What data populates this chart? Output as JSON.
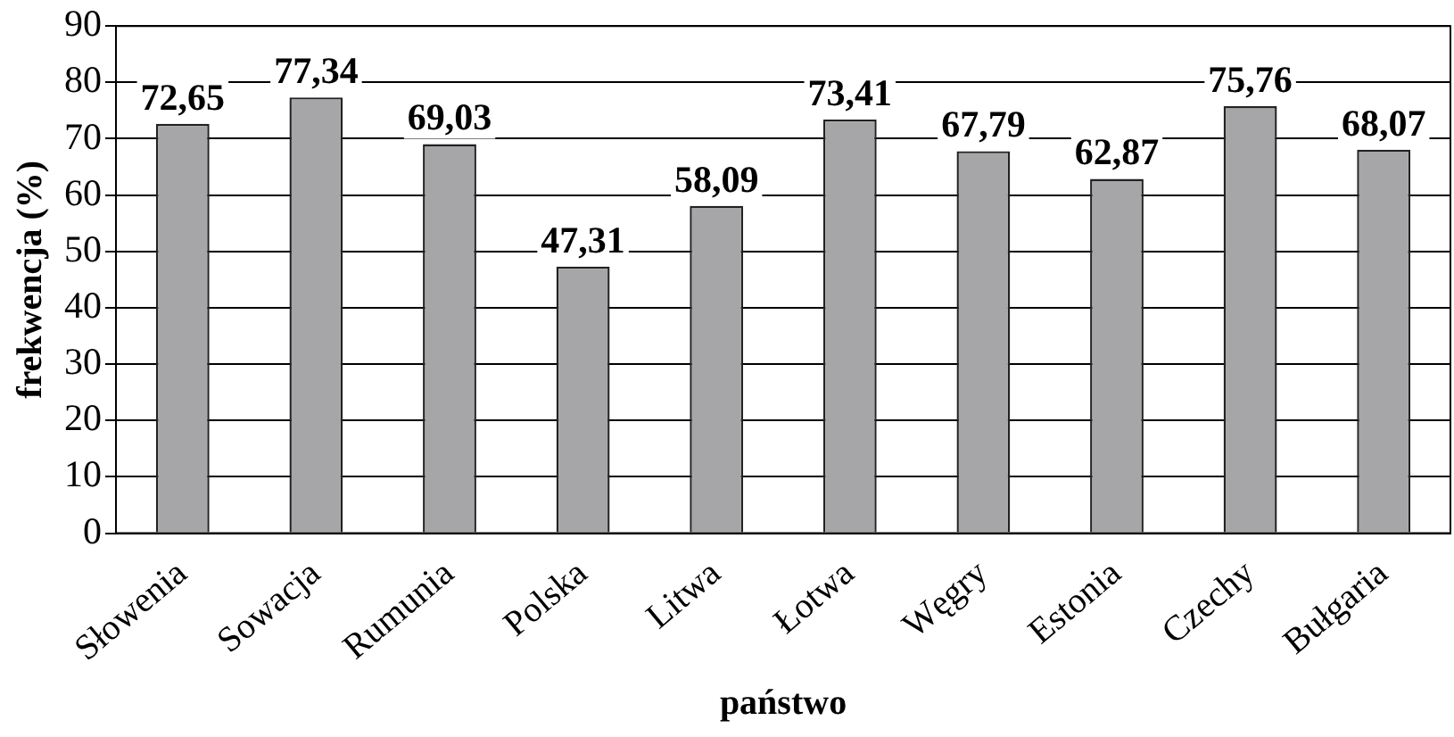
{
  "chart_data": {
    "type": "bar",
    "xlabel": "państwo",
    "ylabel": "frekwencja (%)",
    "categories": [
      "Słowenia",
      "Sowacja",
      "Rumunia",
      "Polska",
      "Litwa",
      "Łotwa",
      "Węgry",
      "Estonia",
      "Czechy",
      "Bułgaria"
    ],
    "values": [
      72.65,
      77.34,
      69.03,
      47.31,
      58.09,
      73.41,
      67.79,
      62.87,
      75.76,
      68.07
    ],
    "value_labels": [
      "72,65",
      "77,34",
      "69,03",
      "47,31",
      "58,09",
      "73,41",
      "67,79",
      "62,87",
      "75,76",
      "68,07"
    ],
    "color": "#a6a6a8",
    "ylim": [
      0,
      90
    ],
    "yticks": [
      0,
      10,
      20,
      30,
      40,
      50,
      60,
      70,
      80,
      90
    ],
    "grid": "y"
  }
}
